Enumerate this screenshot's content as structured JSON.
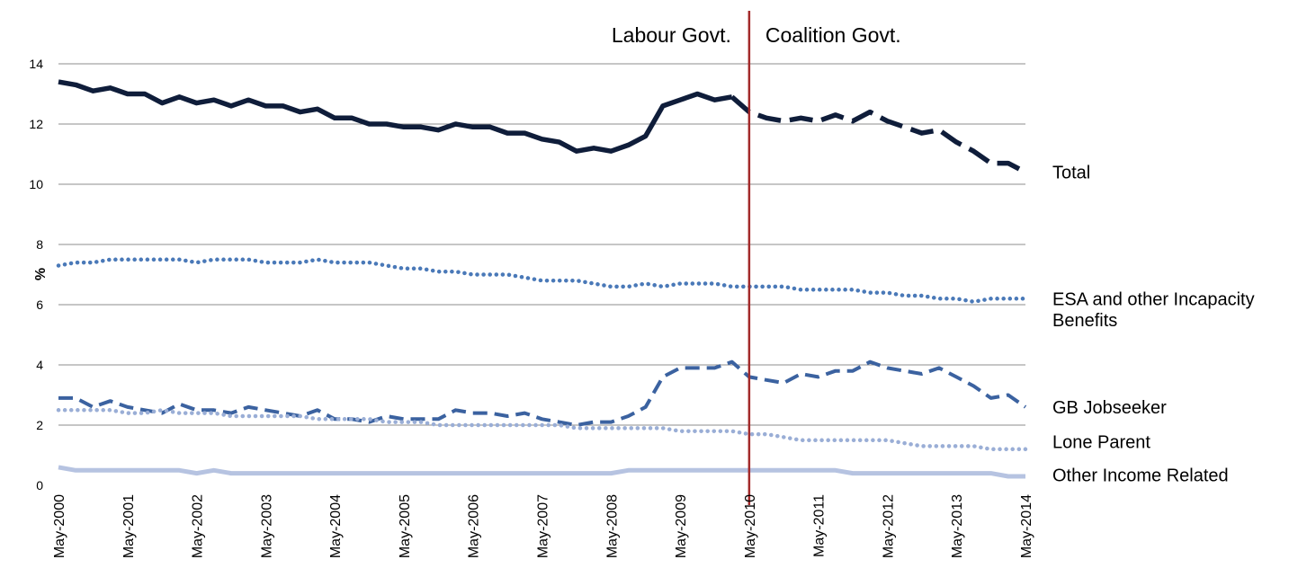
{
  "chart_data": {
    "type": "line",
    "ylabel": "%",
    "ylim": [
      0,
      14
    ],
    "yticks": [
      0,
      2,
      4,
      6,
      8,
      10,
      12,
      14
    ],
    "grid": true,
    "x": [
      "May-2000",
      "Aug-2000",
      "Nov-2000",
      "Feb-2001",
      "May-2001",
      "Aug-2001",
      "Nov-2001",
      "Feb-2002",
      "May-2002",
      "Aug-2002",
      "Nov-2002",
      "Feb-2003",
      "May-2003",
      "Aug-2003",
      "Nov-2003",
      "Feb-2004",
      "May-2004",
      "Aug-2004",
      "Nov-2004",
      "Feb-2005",
      "May-2005",
      "Aug-2005",
      "Nov-2005",
      "Feb-2006",
      "May-2006",
      "Aug-2006",
      "Nov-2006",
      "Feb-2007",
      "May-2007",
      "Aug-2007",
      "Nov-2007",
      "Feb-2008",
      "May-2008",
      "Aug-2008",
      "Nov-2008",
      "Feb-2009",
      "May-2009",
      "Aug-2009",
      "Nov-2009",
      "Feb-2010",
      "May-2010",
      "Aug-2010",
      "Nov-2010",
      "Feb-2011",
      "May-2011",
      "Aug-2011",
      "Nov-2011",
      "Feb-2012",
      "May-2012",
      "Aug-2012",
      "Nov-2012",
      "Feb-2013",
      "May-2013",
      "Aug-2013",
      "Nov-2013",
      "Feb-2014",
      "May-2014"
    ],
    "xticklabels": [
      "May-2000",
      "May-2001",
      "May-2002",
      "May-2003",
      "May-2004",
      "May-2005",
      "May-2006",
      "May-2007",
      "May-2008",
      "May-2009",
      "May-2010",
      "May-2011",
      "May-2012",
      "May-2013",
      "May-2014"
    ],
    "series": [
      {
        "name": "Total",
        "color": "#0f1d3a",
        "style": "solid-thick",
        "values": [
          13.4,
          13.3,
          13.1,
          13.2,
          13.0,
          13.0,
          12.7,
          12.9,
          12.7,
          12.8,
          12.6,
          12.8,
          12.6,
          12.6,
          12.4,
          12.5,
          12.2,
          12.2,
          12.0,
          12.0,
          11.9,
          11.9,
          11.8,
          12.0,
          11.9,
          11.9,
          11.7,
          11.7,
          11.5,
          11.4,
          11.1,
          11.2,
          11.1,
          11.3,
          11.6,
          12.6,
          12.8,
          13.0,
          12.8,
          12.9,
          12.4,
          12.2,
          12.1,
          12.2,
          12.1,
          12.3,
          12.1,
          12.4,
          12.1,
          11.9,
          11.7,
          11.8,
          11.4,
          11.1,
          10.7,
          10.7,
          10.4
        ]
      },
      {
        "name": "ESA and other Incapacity Benefits",
        "color": "#4a79b8",
        "style": "dotted",
        "values": [
          7.3,
          7.4,
          7.4,
          7.5,
          7.5,
          7.5,
          7.5,
          7.5,
          7.4,
          7.5,
          7.5,
          7.5,
          7.4,
          7.4,
          7.4,
          7.5,
          7.4,
          7.4,
          7.4,
          7.3,
          7.2,
          7.2,
          7.1,
          7.1,
          7.0,
          7.0,
          7.0,
          6.9,
          6.8,
          6.8,
          6.8,
          6.7,
          6.6,
          6.6,
          6.7,
          6.6,
          6.7,
          6.7,
          6.7,
          6.6,
          6.6,
          6.6,
          6.6,
          6.5,
          6.5,
          6.5,
          6.5,
          6.4,
          6.4,
          6.3,
          6.3,
          6.2,
          6.2,
          6.1,
          6.2,
          6.2,
          6.2
        ]
      },
      {
        "name": "GB Jobseeker",
        "color": "#3b62a0",
        "style": "dashed",
        "values": [
          2.9,
          2.9,
          2.6,
          2.8,
          2.6,
          2.5,
          2.4,
          2.7,
          2.5,
          2.5,
          2.4,
          2.6,
          2.5,
          2.4,
          2.3,
          2.5,
          2.2,
          2.2,
          2.1,
          2.3,
          2.2,
          2.2,
          2.2,
          2.5,
          2.4,
          2.4,
          2.3,
          2.4,
          2.2,
          2.1,
          2.0,
          2.1,
          2.1,
          2.3,
          2.6,
          3.6,
          3.9,
          3.9,
          3.9,
          4.1,
          3.6,
          3.5,
          3.4,
          3.7,
          3.6,
          3.8,
          3.8,
          4.1,
          3.9,
          3.8,
          3.7,
          3.9,
          3.6,
          3.3,
          2.9,
          3.0,
          2.6
        ]
      },
      {
        "name": "Lone Parent",
        "color": "#9aaed6",
        "style": "dotted",
        "values": [
          2.5,
          2.5,
          2.5,
          2.5,
          2.4,
          2.4,
          2.5,
          2.4,
          2.4,
          2.4,
          2.3,
          2.3,
          2.3,
          2.3,
          2.3,
          2.2,
          2.2,
          2.2,
          2.2,
          2.1,
          2.1,
          2.1,
          2.0,
          2.0,
          2.0,
          2.0,
          2.0,
          2.0,
          2.0,
          2.0,
          1.9,
          1.9,
          1.9,
          1.9,
          1.9,
          1.9,
          1.8,
          1.8,
          1.8,
          1.8,
          1.7,
          1.7,
          1.6,
          1.5,
          1.5,
          1.5,
          1.5,
          1.5,
          1.5,
          1.4,
          1.3,
          1.3,
          1.3,
          1.3,
          1.2,
          1.2,
          1.2
        ]
      },
      {
        "name": "Other Income Related",
        "color": "#b6c3e1",
        "style": "solid",
        "values": [
          0.6,
          0.5,
          0.5,
          0.5,
          0.5,
          0.5,
          0.5,
          0.5,
          0.4,
          0.5,
          0.4,
          0.4,
          0.4,
          0.4,
          0.4,
          0.4,
          0.4,
          0.4,
          0.4,
          0.4,
          0.4,
          0.4,
          0.4,
          0.4,
          0.4,
          0.4,
          0.4,
          0.4,
          0.4,
          0.4,
          0.4,
          0.4,
          0.4,
          0.5,
          0.5,
          0.5,
          0.5,
          0.5,
          0.5,
          0.5,
          0.5,
          0.5,
          0.5,
          0.5,
          0.5,
          0.5,
          0.4,
          0.4,
          0.4,
          0.4,
          0.4,
          0.4,
          0.4,
          0.4,
          0.4,
          0.3,
          0.3
        ]
      }
    ],
    "series_labels": [
      {
        "text": "Total",
        "at": 10.4
      },
      {
        "text": "ESA and other Incapacity",
        "at": 6.2
      },
      {
        "text": "Benefits",
        "at": 5.5
      },
      {
        "text": "GB Jobseeker",
        "at": 2.6
      },
      {
        "text": "Lone Parent",
        "at": 1.45
      },
      {
        "text": "Other Income Related",
        "at": 0.35
      }
    ],
    "divider": {
      "x": "May-2010",
      "color": "#a32a2a",
      "left_label": "Labour Govt.",
      "right_label": "Coalition Govt."
    }
  }
}
